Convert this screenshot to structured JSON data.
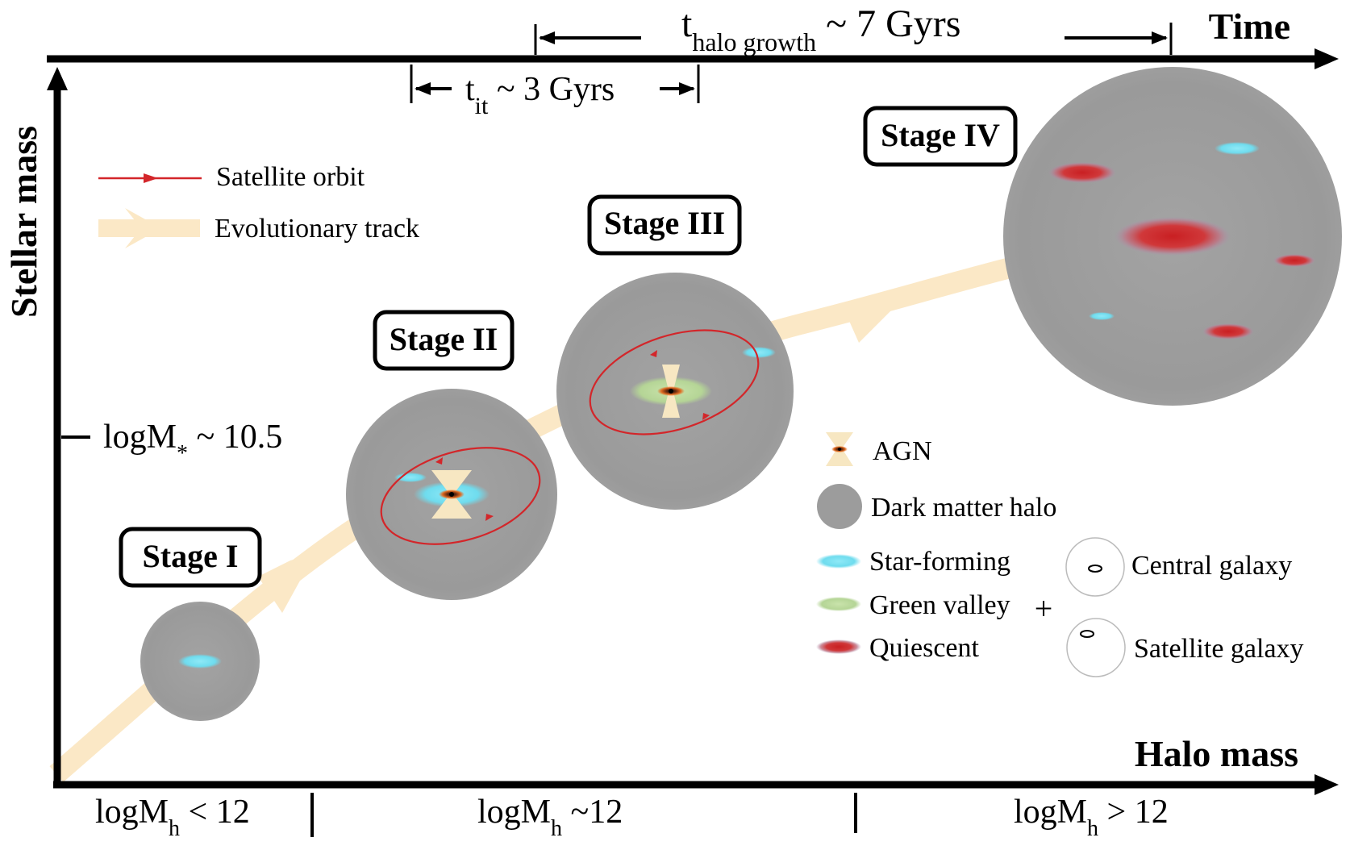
{
  "axes": {
    "time_label": "Time",
    "stellar_mass_label": "Stellar mass",
    "halo_mass_label": "Halo mass",
    "stellar_mass_tick": {
      "prefix": "logM",
      "sub": "*",
      "suffix": " ~ 10.5"
    },
    "halo_bins": [
      {
        "prefix": "logM",
        "sub": "h",
        "suffix": " < 12"
      },
      {
        "prefix": "logM",
        "sub": "h",
        "suffix": " ~12"
      },
      {
        "prefix": "logM",
        "sub": "h",
        "suffix": " > 12"
      }
    ]
  },
  "timescales": {
    "halo_growth": {
      "main": "t",
      "sub": "halo growth",
      "suffix": " ~ 7 Gyrs"
    },
    "transition": {
      "main": "t",
      "sub": "it",
      "suffix": " ~ 3 Gyrs"
    }
  },
  "stages": [
    "Stage I",
    "Stage II",
    "Stage III",
    "Stage IV"
  ],
  "legend_top": {
    "satellite_orbit": "Satellite orbit",
    "evolutionary_track": "Evolutionary track"
  },
  "legend_bottom": {
    "agn": "AGN",
    "dark_matter_halo": "Dark matter halo",
    "star_forming": "Star-forming",
    "green_valley": "Green valley",
    "quiescent": "Quiescent",
    "plus": "+",
    "central_galaxy": "Central galaxy",
    "satellite_galaxy": "Satellite galaxy"
  },
  "colors": {
    "halo": "#9c9c9c",
    "star_forming": "#7fe3f3",
    "green_valley": "#b9d99a",
    "quiescent": "#c42a2a",
    "agn_cone": "#f7e7c2",
    "orbit": "#d3262a",
    "track": "#fbe8c6",
    "axis": "#000000"
  }
}
